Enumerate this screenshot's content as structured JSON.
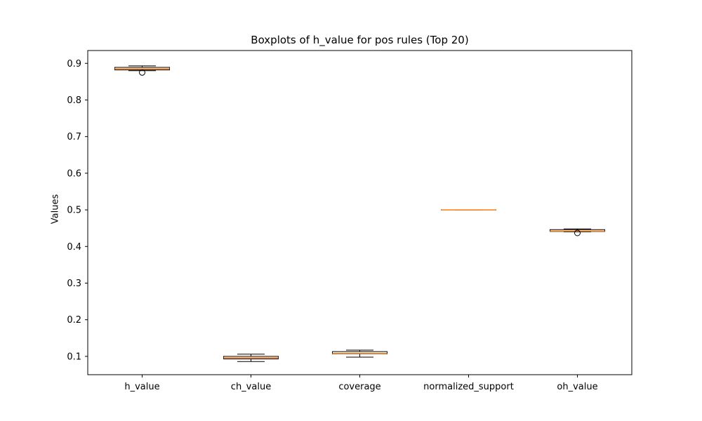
{
  "chart_data": {
    "type": "boxplot",
    "title": "Boxplots of h_value for pos rules (Top 20)",
    "xlabel": "",
    "ylabel": "Values",
    "ylim": [
      0.05,
      0.935
    ],
    "yticks": [
      0.1,
      0.2,
      0.3,
      0.4,
      0.5,
      0.6,
      0.7,
      0.8,
      0.9
    ],
    "ytick_labels": [
      "0.1",
      "0.2",
      "0.3",
      "0.4",
      "0.5",
      "0.6",
      "0.7",
      "0.8",
      "0.9"
    ],
    "categories": [
      "h_value",
      "ch_value",
      "coverage",
      "normalized_support",
      "oh_value"
    ],
    "boxes": [
      {
        "label": "h_value",
        "whislo": 0.88,
        "q1": 0.882,
        "med": 0.885,
        "q3": 0.889,
        "whishi": 0.893,
        "fliers": [
          0.875
        ]
      },
      {
        "label": "ch_value",
        "whislo": 0.086,
        "q1": 0.093,
        "med": 0.096,
        "q3": 0.1,
        "whishi": 0.106,
        "fliers": []
      },
      {
        "label": "coverage",
        "whislo": 0.098,
        "q1": 0.107,
        "med": 0.108,
        "q3": 0.113,
        "whishi": 0.117,
        "fliers": []
      },
      {
        "label": "normalized_support",
        "whislo": 0.5,
        "q1": 0.5,
        "med": 0.5,
        "q3": 0.5,
        "whishi": 0.5,
        "fliers": []
      },
      {
        "label": "oh_value",
        "whislo": 0.44,
        "q1": 0.441,
        "med": 0.442,
        "q3": 0.446,
        "whishi": 0.448,
        "fliers": [
          0.437
        ]
      }
    ],
    "colors": {
      "box": "#000000",
      "median": "#ff7f0e",
      "flier": "#000000"
    },
    "grid": false,
    "legend": false
  }
}
